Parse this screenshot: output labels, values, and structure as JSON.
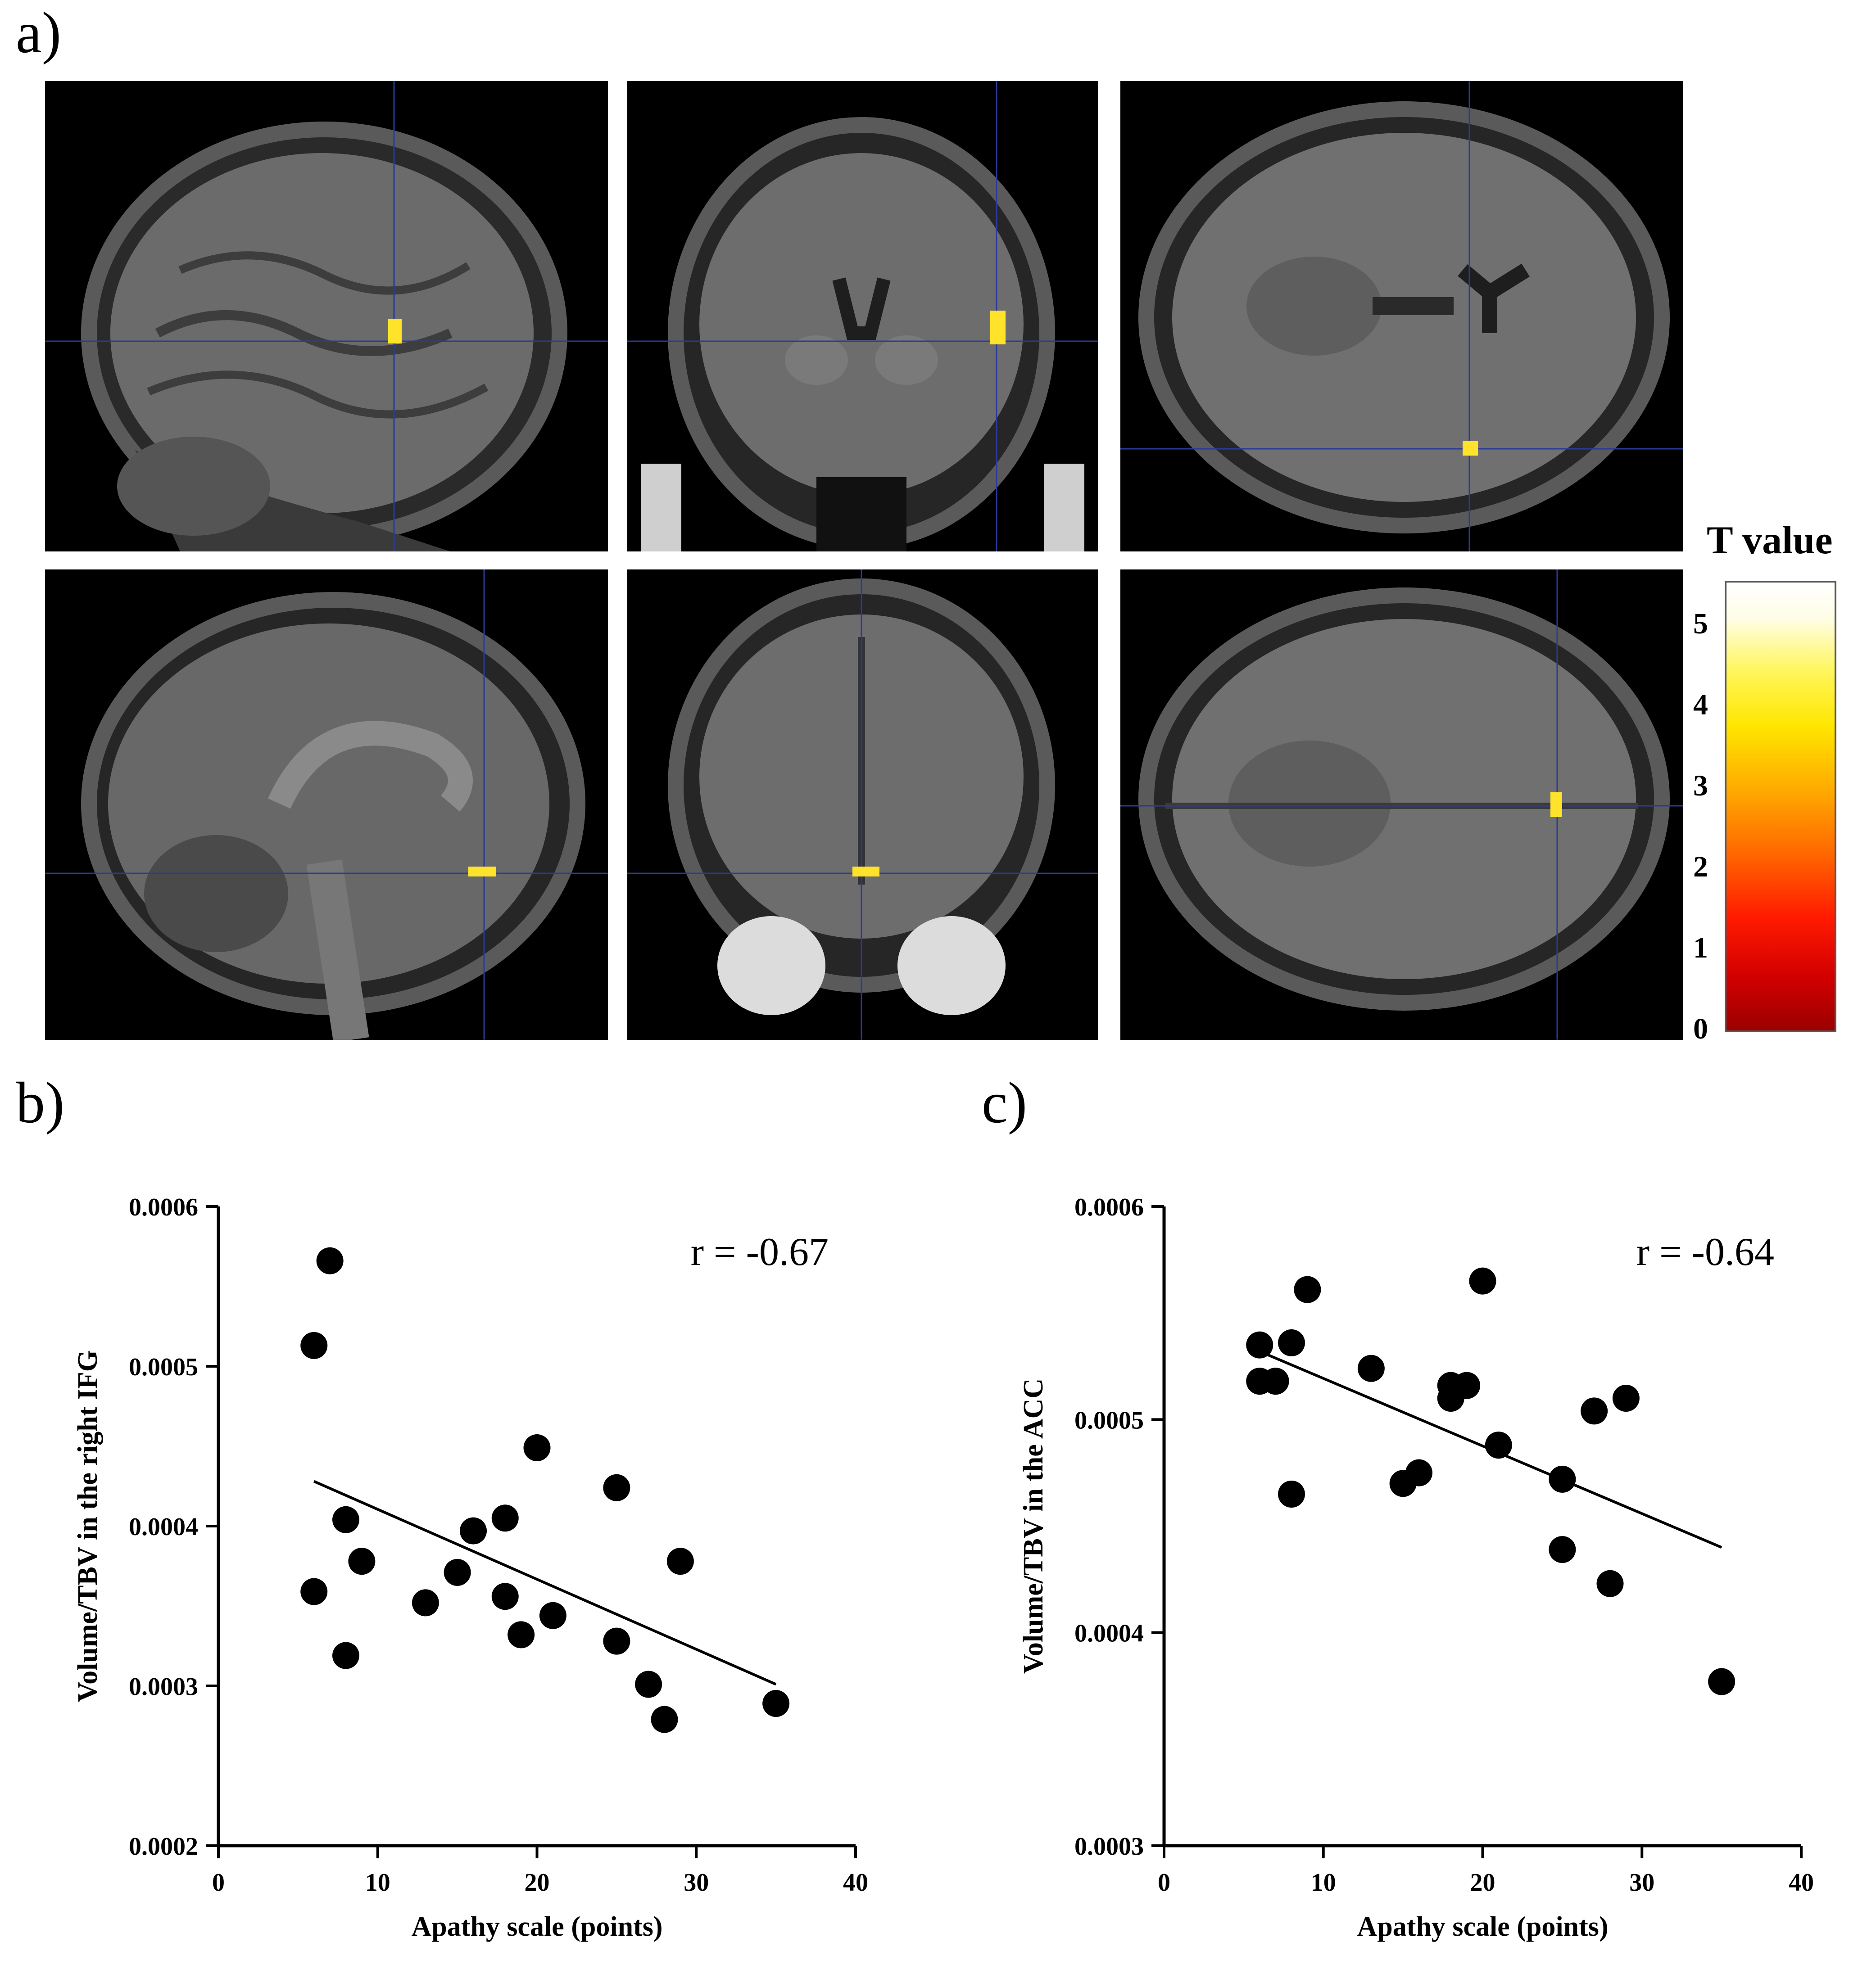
{
  "panel_labels": {
    "a": "a)",
    "b": "b)",
    "c": "c)"
  },
  "colorbar": {
    "title": "T value",
    "ticks": [
      "5",
      "4",
      "3",
      "2",
      "1",
      "0"
    ],
    "range": [
      0,
      5.5
    ],
    "colors": [
      "#9b0000",
      "#ff1a00",
      "#ffb000",
      "#ffe600",
      "#ffffff"
    ]
  },
  "mri_panels": [
    {
      "view": "sagittal",
      "row": 1
    },
    {
      "view": "coronal",
      "row": 1
    },
    {
      "view": "axial",
      "row": 1
    },
    {
      "view": "sagittal",
      "row": 2
    },
    {
      "view": "coronal",
      "row": 2
    },
    {
      "view": "axial",
      "row": 2
    }
  ],
  "chart_data": [
    {
      "type": "scatter",
      "annotation": "r = -0.67",
      "xlabel": "Apathy scale (points)",
      "ylabel": "Volume/TBV in the right IFG",
      "xlim": [
        0,
        40
      ],
      "ylim": [
        0.0002,
        0.0006
      ],
      "xticks": [
        "0",
        "10",
        "20",
        "30",
        "40"
      ],
      "yticks": [
        "0.0002",
        "0.0003",
        "0.0004",
        "0.0005",
        "0.0006"
      ],
      "points": [
        {
          "x": 7,
          "y": 0.000566
        },
        {
          "x": 6,
          "y": 0.000513
        },
        {
          "x": 20,
          "y": 0.000449
        },
        {
          "x": 25,
          "y": 0.000424
        },
        {
          "x": 8,
          "y": 0.000404
        },
        {
          "x": 18,
          "y": 0.000405
        },
        {
          "x": 16,
          "y": 0.000397
        },
        {
          "x": 9,
          "y": 0.000378
        },
        {
          "x": 29,
          "y": 0.000378
        },
        {
          "x": 15,
          "y": 0.000371
        },
        {
          "x": 6,
          "y": 0.000359
        },
        {
          "x": 18,
          "y": 0.000356
        },
        {
          "x": 13,
          "y": 0.000352
        },
        {
          "x": 21,
          "y": 0.000344
        },
        {
          "x": 19,
          "y": 0.000332
        },
        {
          "x": 25,
          "y": 0.000328
        },
        {
          "x": 8,
          "y": 0.000319
        },
        {
          "x": 27,
          "y": 0.000301
        },
        {
          "x": 35,
          "y": 0.000289
        },
        {
          "x": 28,
          "y": 0.000279
        }
      ],
      "fit_line": {
        "x": [
          6,
          35
        ],
        "y": [
          0.000428,
          0.000301
        ]
      }
    },
    {
      "type": "scatter",
      "annotation": "r = -0.64",
      "xlabel": "Apathy scale (points)",
      "ylabel": "Volume/TBV in the ACC",
      "xlim": [
        0,
        40
      ],
      "ylim": [
        0.0003,
        0.0006
      ],
      "xticks": [
        "0",
        "10",
        "20",
        "30",
        "40"
      ],
      "yticks": [
        "0.0003",
        "0.0004",
        "0.0005",
        "0.0006"
      ],
      "points": [
        {
          "x": 20,
          "y": 0.000565
        },
        {
          "x": 9,
          "y": 0.000561
        },
        {
          "x": 8,
          "y": 0.000536
        },
        {
          "x": 6,
          "y": 0.000535
        },
        {
          "x": 13,
          "y": 0.000524
        },
        {
          "x": 6,
          "y": 0.000518
        },
        {
          "x": 7,
          "y": 0.000518
        },
        {
          "x": 18,
          "y": 0.000516
        },
        {
          "x": 19,
          "y": 0.000516
        },
        {
          "x": 18,
          "y": 0.00051
        },
        {
          "x": 29,
          "y": 0.00051
        },
        {
          "x": 27,
          "y": 0.000504
        },
        {
          "x": 21,
          "y": 0.000488
        },
        {
          "x": 16,
          "y": 0.000475
        },
        {
          "x": 15,
          "y": 0.00047
        },
        {
          "x": 25,
          "y": 0.000472
        },
        {
          "x": 8,
          "y": 0.000465
        },
        {
          "x": 25,
          "y": 0.000439
        },
        {
          "x": 28,
          "y": 0.000423
        },
        {
          "x": 35,
          "y": 0.000377
        }
      ],
      "fit_line": {
        "x": [
          6,
          35
        ],
        "y": [
          0.000532,
          0.00044
        ]
      }
    }
  ]
}
